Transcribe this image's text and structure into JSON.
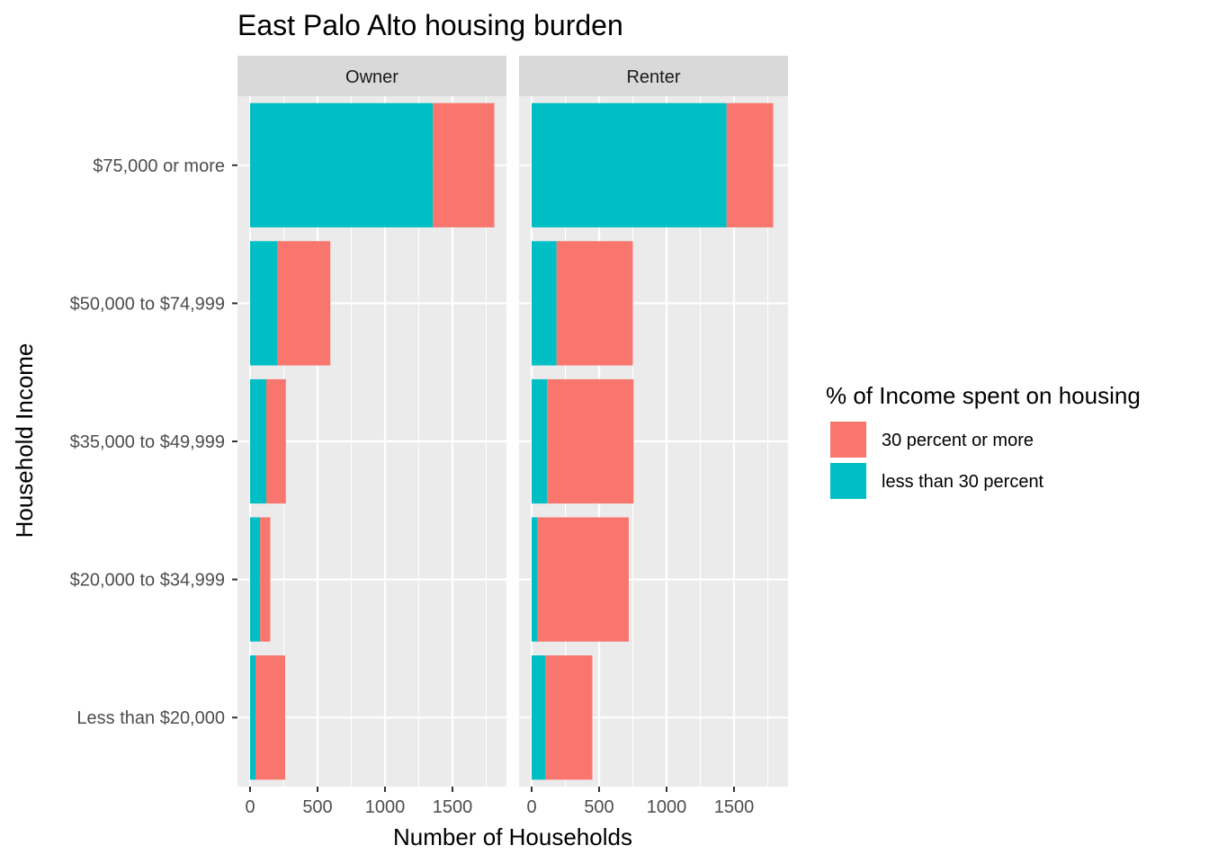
{
  "chart_data": {
    "type": "bar",
    "orientation": "horizontal",
    "stacked": true,
    "title": "East Palo Alto housing burden",
    "xlabel": "Number of Households",
    "ylabel": "Household Income",
    "xlim": [
      0,
      1900
    ],
    "x_ticks": [
      0,
      500,
      1000,
      1500
    ],
    "categories": [
      "Less than $20,000",
      "$20,000 to $34,999",
      "$35,000 to $49,999",
      "$50,000 to $74,999",
      "$75,000 or more"
    ],
    "legend": {
      "title": "% of Income spent on housing",
      "position": "right",
      "entries": [
        "30 percent or more",
        "less than 30 percent"
      ]
    },
    "colors": {
      "30 percent or more": "#F8766D",
      "less than 30 percent": "#00BFC4",
      "panel_bg": "#EBEBEB",
      "strip_bg": "#D9D9D9",
      "grid": "#FFFFFF"
    },
    "grid": true,
    "facets": [
      {
        "label": "Owner",
        "series": [
          {
            "name": "less than 30 percent",
            "values": [
              40,
              75,
              120,
              200,
              1355
            ]
          },
          {
            "name": "30 percent or more",
            "values": [
              220,
              75,
              145,
              395,
              455
            ]
          }
        ]
      },
      {
        "label": "Renter",
        "series": [
          {
            "name": "less than 30 percent",
            "values": [
              100,
              40,
              115,
              185,
              1445
            ]
          },
          {
            "name": "30 percent or more",
            "values": [
              350,
              680,
              640,
              565,
              345
            ]
          }
        ]
      }
    ]
  }
}
